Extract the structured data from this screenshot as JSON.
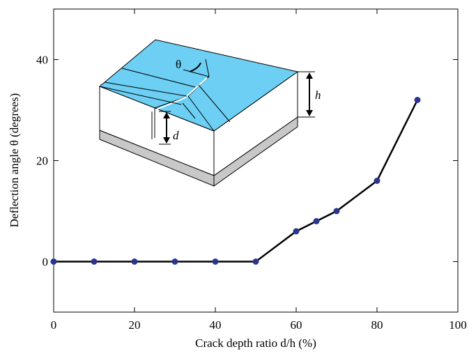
{
  "chart_data": {
    "type": "line",
    "xlabel": "Crack depth ratio d/h (%)",
    "ylabel": "Deflection angle θ (degrees)",
    "x": [
      0,
      10,
      20,
      30,
      40,
      50,
      60,
      65,
      70,
      80,
      90
    ],
    "series": [
      {
        "color": "#2b3590",
        "values": [
          0,
          0,
          0,
          0,
          0,
          0,
          6,
          8,
          10,
          16,
          32
        ]
      }
    ],
    "xlim": [
      0,
      100
    ],
    "ylim": [
      -10,
      50
    ],
    "xticks": [
      0,
      20,
      40,
      60,
      80,
      100
    ],
    "yticks": [
      0,
      20,
      40
    ],
    "annotations": [
      "θ",
      "h",
      "d"
    ]
  }
}
